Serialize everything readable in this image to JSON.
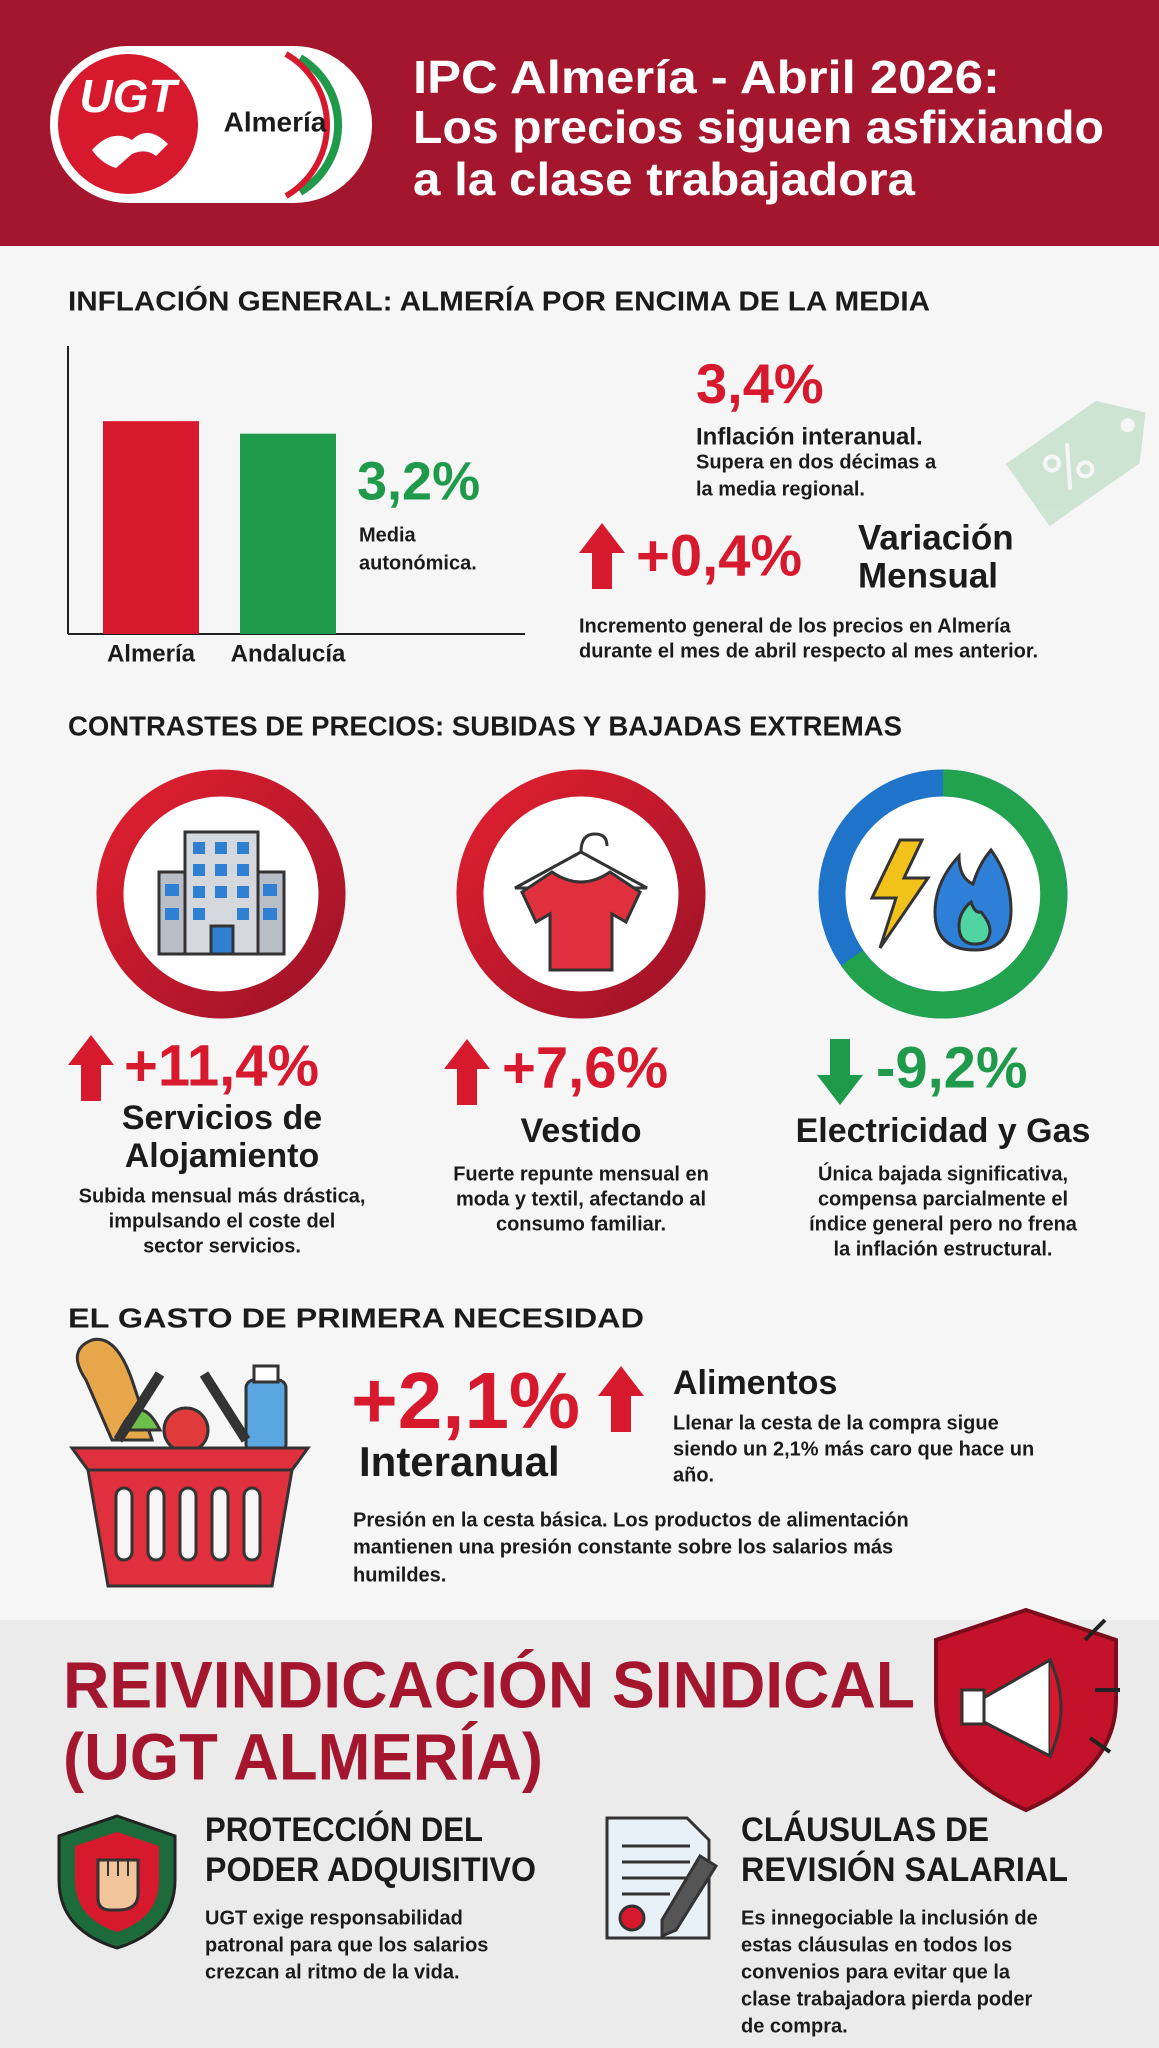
{
  "header": {
    "logo_text": "UGT",
    "logo_location": "Almería",
    "title": [
      "IPC Almería - Abril 2026:",
      "Los precios siguen asfixiando",
      "a la clase trabajadora"
    ]
  },
  "inflation": {
    "heading": "INFLACIÓN GENERAL: ALMERÍA POR ENCIMA DE LA MEDIA",
    "chart_data": {
      "type": "bar",
      "categories": [
        "Almería",
        "Andalucía"
      ],
      "values": [
        3.4,
        3.2
      ],
      "value_labels": [
        "3,4%",
        "3,2%"
      ],
      "colors": [
        "#d7192e",
        "#1f9a4b"
      ]
    },
    "regional_label": [
      "Media",
      "autonómica."
    ],
    "interanual_label": "Inflación interanual.",
    "interanual_note": [
      "Supera en dos décimas a",
      "la media regional."
    ],
    "monthly_value": "+0,4%",
    "monthly_label": [
      "Variación",
      "Mensual"
    ],
    "monthly_note": [
      "Incremento general de los precios en Almería",
      "durante el mes de abril respecto al mes anterior."
    ]
  },
  "contrasts": {
    "heading": "CONTRASTES DE PRECIOS: SUBIDAS Y BAJADAS EXTREMAS",
    "items": [
      {
        "value": "+11,4%",
        "title": [
          "Servicios de",
          "Alojamiento"
        ],
        "description": [
          "Subida mensual más drástica,",
          "impulsando el coste del",
          "sector servicios."
        ]
      },
      {
        "value": "+7,6%",
        "title": [
          "Vestido"
        ],
        "description": [
          "Fuerte repunte mensual en",
          "moda y textil, afectando al",
          "consumo familiar."
        ]
      },
      {
        "value": "-9,2%",
        "title": [
          "Electricidad y Gas"
        ],
        "description": [
          "Única bajada significativa,",
          "compensa parcialmente el",
          "índice general pero no frena",
          "la inflación estructural."
        ]
      }
    ]
  },
  "essentials": {
    "heading": "EL GASTO DE PRIMERA NECESIDAD",
    "value": "+2,1%",
    "period": "Interanual",
    "category": "Alimentos",
    "note": [
      "Llenar la cesta de la compra sigue",
      "siendo un 2,1% más caro que hace un",
      "año."
    ],
    "description": [
      "Presión en la cesta básica. Los productos de alimentación",
      "mantienen una presión constante sobre los salarios más",
      "humildes."
    ]
  },
  "claim": {
    "heading": [
      "REIVINDICACIÓN SINDICAL",
      "(UGT ALMERÍA)"
    ],
    "points": [
      {
        "title": [
          "PROTECCIÓN DEL",
          "PODER ADQUISITIVO"
        ],
        "description": [
          "UGT exige responsabilidad",
          "patronal para que los salarios",
          "crezcan al ritmo de la vida."
        ]
      },
      {
        "title": [
          "CLÁUSULAS DE",
          "REVISIÓN SALARIAL"
        ],
        "description": [
          "Es innegociable la inclusión de",
          "estas cláusulas en todos los",
          "convenios para evitar que la",
          "clase trabajadora pierda poder",
          "de compra."
        ]
      }
    ]
  }
}
